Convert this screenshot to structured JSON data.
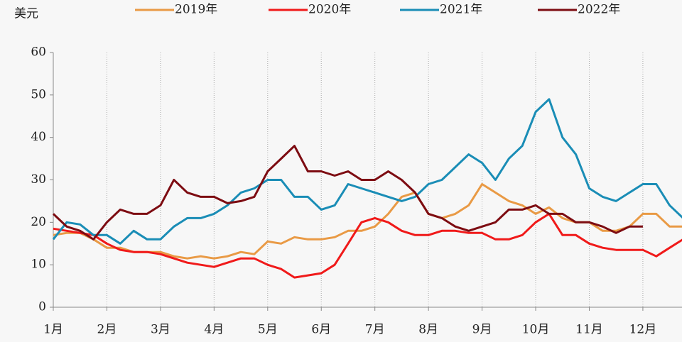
{
  "chart_data": {
    "type": "line",
    "y_label": "美元",
    "x": [
      1,
      1.25,
      1.5,
      1.75,
      2,
      2.25,
      2.5,
      2.75,
      3,
      3.25,
      3.5,
      3.75,
      4,
      4.25,
      4.5,
      4.75,
      5,
      5.25,
      5.5,
      5.75,
      6,
      6.25,
      6.5,
      6.75,
      7,
      7.25,
      7.5,
      7.75,
      8,
      8.25,
      8.5,
      8.75,
      9,
      9.25,
      9.5,
      9.75,
      10,
      10.25,
      10.5,
      10.75,
      11,
      11.25,
      11.5,
      11.75,
      12,
      12.25,
      12.5,
      12.75
    ],
    "series": [
      {
        "name": "2019年",
        "color": "#e99a45",
        "values": [
          17,
          17.5,
          17.5,
          16,
          14,
          14,
          13,
          13,
          13,
          12,
          11.5,
          12,
          11.5,
          12,
          13,
          12.5,
          15.5,
          15,
          16.5,
          16,
          16,
          16.5,
          18,
          18,
          19,
          22,
          26,
          27,
          22,
          21,
          22,
          24,
          29,
          27,
          25,
          24,
          22,
          23.5,
          21,
          20,
          20,
          18,
          18,
          19,
          22,
          22,
          19,
          19
        ]
      },
      {
        "name": "2020年",
        "color": "#f01a1a",
        "values": [
          18.5,
          18,
          17.5,
          17,
          15,
          13.5,
          13,
          13,
          12.5,
          11.5,
          10.5,
          10,
          9.5,
          10.5,
          11.5,
          11.5,
          10,
          9,
          7,
          7.5,
          8,
          10,
          15,
          20,
          21,
          20,
          18,
          17,
          17,
          18,
          18,
          17.5,
          17.5,
          16,
          16,
          17,
          20,
          22,
          17,
          17,
          15,
          14,
          13.5,
          13.5,
          13.5,
          12,
          14,
          16
        ]
      },
      {
        "name": "2021年",
        "color": "#1a8db6",
        "values": [
          16,
          20,
          19.5,
          17,
          17,
          15,
          18,
          16,
          16,
          19,
          21,
          21,
          22,
          24,
          27,
          28,
          30,
          30,
          26,
          26,
          23,
          24,
          29,
          28,
          27,
          26,
          25,
          26,
          29,
          30,
          33,
          36,
          34,
          30,
          35,
          38,
          46,
          49,
          40,
          36,
          28,
          26,
          25,
          27,
          29,
          29,
          24,
          21
        ]
      },
      {
        "name": "2022年",
        "color": "#7d0c12",
        "values": [
          22,
          19,
          18,
          16,
          20,
          23,
          22,
          22,
          24,
          30,
          27,
          26,
          26,
          24.5,
          25,
          26,
          32,
          35,
          38,
          32,
          32,
          31,
          32,
          30,
          30,
          32,
          30,
          27,
          22,
          21,
          19,
          18,
          19,
          20,
          23,
          23,
          24,
          22,
          22,
          20,
          20,
          19,
          17.5,
          19,
          19,
          null,
          null,
          null
        ]
      }
    ],
    "xlim": [
      1,
      12.73
    ],
    "xticks": [
      {
        "value": 1,
        "label": "1月"
      },
      {
        "value": 2,
        "label": "2月"
      },
      {
        "value": 3,
        "label": "3月"
      },
      {
        "value": 4,
        "label": "4月"
      },
      {
        "value": 5,
        "label": "5月"
      },
      {
        "value": 6,
        "label": "6月"
      },
      {
        "value": 7,
        "label": "7月"
      },
      {
        "value": 8,
        "label": "8月"
      },
      {
        "value": 9,
        "label": "9月"
      },
      {
        "value": 10,
        "label": "10月"
      },
      {
        "value": 11,
        "label": "11月"
      },
      {
        "value": 12,
        "label": "12月"
      }
    ],
    "ylim": [
      0,
      60
    ],
    "yticks": [
      0,
      10,
      20,
      30,
      40,
      50,
      60
    ],
    "grid_x": true,
    "legend": "top"
  }
}
